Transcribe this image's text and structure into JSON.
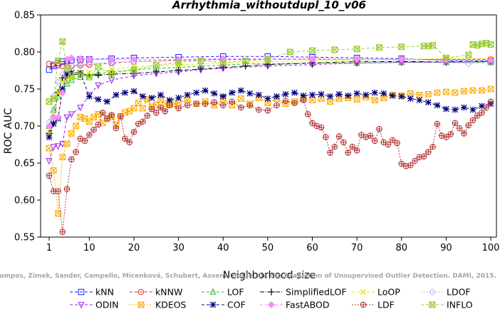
{
  "chart_data": {
    "type": "line",
    "title": "Arrhythmia_withoutdupl_10_v06",
    "xlabel": "Neighborhood size",
    "ylabel": "ROC AUC",
    "xlim": [
      0,
      101
    ],
    "ylim": [
      0.55,
      0.85
    ],
    "xticks": [
      1,
      10,
      20,
      30,
      40,
      50,
      60,
      70,
      80,
      90,
      100
    ],
    "yticks": [
      0.55,
      0.6,
      0.65,
      0.7,
      0.75,
      0.8,
      0.85
    ],
    "grid": false,
    "legend_position": "bottom",
    "credit": "Campos, Zimek, Sander, Campello, Micenková, Schubert, Assent, Houle: On the Evaluation of Unsupervised Outlier Detection. DAMI, 2015.",
    "series": [
      {
        "name": "kNN",
        "color": "#1a1aff",
        "marker": "square",
        "dash": "4,3",
        "x": [
          1,
          2,
          3,
          4,
          5,
          6,
          8,
          10,
          15,
          20,
          30,
          40,
          50,
          60,
          70,
          80,
          90,
          100
        ],
        "y": [
          0.776,
          0.781,
          0.785,
          0.787,
          0.788,
          0.789,
          0.79,
          0.79,
          0.791,
          0.792,
          0.793,
          0.794,
          0.794,
          0.793,
          0.792,
          0.791,
          0.789,
          0.788
        ]
      },
      {
        "name": "kNNW",
        "color": "#e02020",
        "marker": "circle",
        "dash": "4,3",
        "x": [
          1,
          2,
          3,
          4,
          5,
          6,
          8,
          10,
          15,
          20,
          30,
          40,
          50,
          60,
          70,
          80,
          90,
          100
        ],
        "y": [
          0.784,
          0.783,
          0.782,
          0.781,
          0.781,
          0.781,
          0.782,
          0.783,
          0.785,
          0.787,
          0.789,
          0.79,
          0.79,
          0.79,
          0.79,
          0.79,
          0.79,
          0.79
        ]
      },
      {
        "name": "LOF",
        "color": "#22bb22",
        "marker": "triangle-up",
        "dash": "4,3",
        "x": [
          1,
          2,
          3,
          4,
          5,
          6,
          8,
          10,
          12,
          15,
          20,
          25,
          30,
          35,
          40,
          45,
          50,
          60,
          70,
          80,
          90,
          100
        ],
        "y": [
          0.7,
          0.722,
          0.74,
          0.75,
          0.757,
          0.762,
          0.766,
          0.769,
          0.771,
          0.773,
          0.776,
          0.778,
          0.779,
          0.781,
          0.782,
          0.784,
          0.784,
          0.785,
          0.785,
          0.786,
          0.786,
          0.786
        ]
      },
      {
        "name": "SimplifiedLOF",
        "color": "#000000",
        "marker": "plus",
        "dash": "6,2,1,2",
        "x": [
          1,
          2,
          3,
          4,
          5,
          6,
          8,
          10,
          12,
          15,
          20,
          25,
          30,
          35,
          40,
          45,
          50,
          60,
          70,
          80,
          90,
          100
        ],
        "y": [
          0.69,
          0.705,
          0.745,
          0.765,
          0.768,
          0.77,
          0.77,
          0.769,
          0.769,
          0.77,
          0.771,
          0.773,
          0.775,
          0.777,
          0.779,
          0.781,
          0.783,
          0.785,
          0.787,
          0.787,
          0.787,
          0.787
        ]
      },
      {
        "name": "LoOP",
        "color": "#e8e800",
        "marker": "x",
        "dash": "4,3",
        "x": [
          1,
          2,
          3,
          4,
          5,
          6,
          8,
          10,
          15,
          20,
          30,
          40,
          50,
          60,
          70,
          80,
          90,
          100
        ],
        "y": [
          0.69,
          0.71,
          0.745,
          0.76,
          0.763,
          0.766,
          0.77,
          0.772,
          0.776,
          0.78,
          0.783,
          0.785,
          0.787,
          0.788,
          0.789,
          0.79,
          0.791,
          0.791
        ]
      },
      {
        "name": "LDOF",
        "color": "#b8b8f8",
        "marker": "diamond",
        "dash": "2,2",
        "x": [
          1,
          2,
          3,
          4,
          5,
          6,
          8,
          10,
          15,
          20,
          30,
          40,
          50,
          60,
          70,
          80,
          90,
          95,
          100
        ],
        "y": [
          0.705,
          0.74,
          0.76,
          0.77,
          0.78,
          0.782,
          0.784,
          0.785,
          0.786,
          0.787,
          0.788,
          0.789,
          0.79,
          0.79,
          0.79,
          0.789,
          0.786,
          0.784,
          0.786
        ]
      },
      {
        "name": "ODIN",
        "color": "#9922ee",
        "marker": "triangle-down",
        "dash": "4,3",
        "x": [
          1,
          2,
          3,
          4,
          5,
          6,
          8,
          10,
          12,
          15,
          20,
          25,
          30,
          35,
          40,
          50,
          60,
          70,
          80,
          90,
          100
        ],
        "y": [
          0.653,
          0.672,
          0.673,
          0.676,
          0.712,
          0.716,
          0.725,
          0.742,
          0.755,
          0.762,
          0.768,
          0.771,
          0.773,
          0.776,
          0.778,
          0.781,
          0.783,
          0.785,
          0.786,
          0.786,
          0.787
        ]
      },
      {
        "name": "KDEOS",
        "color": "#ffaa00",
        "marker": "square-x",
        "dash": "2,2",
        "x": [
          1,
          2,
          3,
          4,
          5,
          6,
          7,
          8,
          9,
          10,
          11,
          12,
          13,
          14,
          15,
          16,
          17,
          18,
          19,
          20,
          21,
          22,
          23,
          24,
          25,
          26,
          27,
          28,
          29,
          30,
          32,
          34,
          36,
          38,
          40,
          42,
          44,
          46,
          48,
          50,
          52,
          54,
          56,
          58,
          60,
          62,
          64,
          66,
          68,
          70,
          72,
          74,
          76,
          78,
          80,
          82,
          84,
          86,
          88,
          90,
          92,
          94,
          96,
          98,
          100
        ],
        "y": [
          0.67,
          0.64,
          0.582,
          0.658,
          0.676,
          0.69,
          0.7,
          0.712,
          0.71,
          0.706,
          0.712,
          0.716,
          0.704,
          0.71,
          0.713,
          0.702,
          0.713,
          0.718,
          0.72,
          0.724,
          0.731,
          0.724,
          0.736,
          0.726,
          0.729,
          0.735,
          0.73,
          0.729,
          0.73,
          0.731,
          0.735,
          0.73,
          0.733,
          0.728,
          0.736,
          0.728,
          0.737,
          0.73,
          0.738,
          0.731,
          0.737,
          0.73,
          0.733,
          0.737,
          0.735,
          0.737,
          0.733,
          0.737,
          0.738,
          0.736,
          0.739,
          0.735,
          0.738,
          0.742,
          0.741,
          0.744,
          0.742,
          0.743,
          0.745,
          0.746,
          0.745,
          0.747,
          0.748,
          0.748,
          0.75
        ]
      },
      {
        "name": "COF",
        "color": "#000080",
        "marker": "asterisk",
        "dash": "4,3",
        "x": [
          1,
          2,
          3,
          4,
          5,
          6,
          8,
          10,
          12,
          14,
          16,
          18,
          20,
          22,
          24,
          26,
          28,
          30,
          32,
          34,
          36,
          38,
          40,
          42,
          44,
          46,
          48,
          50,
          52,
          54,
          56,
          58,
          60,
          62,
          64,
          66,
          68,
          70,
          72,
          74,
          76,
          78,
          80,
          82,
          84,
          86,
          88,
          90,
          92,
          94,
          96,
          98,
          100
        ],
        "y": [
          0.685,
          0.703,
          0.71,
          0.75,
          0.77,
          0.772,
          0.772,
          0.74,
          0.736,
          0.733,
          0.742,
          0.745,
          0.747,
          0.74,
          0.738,
          0.742,
          0.735,
          0.738,
          0.742,
          0.745,
          0.748,
          0.744,
          0.74,
          0.745,
          0.748,
          0.744,
          0.742,
          0.737,
          0.74,
          0.743,
          0.745,
          0.741,
          0.742,
          0.743,
          0.74,
          0.743,
          0.741,
          0.744,
          0.742,
          0.745,
          0.744,
          0.741,
          0.74,
          0.737,
          0.735,
          0.732,
          0.728,
          0.723,
          0.722,
          0.725,
          0.722,
          0.727,
          0.73
        ]
      },
      {
        "name": "FastABOD",
        "color": "#ff88ff",
        "marker": "diamond-filled",
        "dash": "4,3",
        "x": [
          1,
          2,
          3,
          4,
          5,
          6,
          8,
          10,
          15,
          20,
          30,
          40,
          50,
          60,
          70,
          80,
          90,
          100
        ],
        "y": [
          0.7,
          0.712,
          0.712,
          0.745,
          0.79,
          0.792,
          0.791,
          0.79,
          0.79,
          0.79,
          0.79,
          0.791,
          0.791,
          0.791,
          0.79,
          0.79,
          0.789,
          0.789
        ]
      },
      {
        "name": "LDF",
        "color": "#b03030",
        "marker": "circle-plus",
        "dash": "2,2",
        "x": [
          1,
          2,
          3,
          4,
          5,
          6,
          7,
          8,
          9,
          10,
          11,
          12,
          13,
          14,
          15,
          16,
          17,
          18,
          19,
          20,
          21,
          22,
          23,
          24,
          25,
          26,
          27,
          28,
          30,
          32,
          34,
          36,
          38,
          40,
          42,
          44,
          46,
          48,
          50,
          52,
          54,
          56,
          58,
          59,
          60,
          61,
          62,
          63,
          64,
          65,
          66,
          67,
          68,
          69,
          70,
          71,
          72,
          73,
          74,
          75,
          76,
          77,
          78,
          79,
          80,
          81,
          82,
          83,
          84,
          85,
          86,
          87,
          88,
          89,
          90,
          91,
          92,
          93,
          94,
          95,
          96,
          97,
          98,
          99,
          100
        ],
        "y": [
          0.633,
          0.612,
          0.612,
          0.557,
          0.615,
          0.655,
          0.665,
          0.683,
          0.68,
          0.688,
          0.695,
          0.702,
          0.718,
          0.71,
          0.715,
          0.697,
          0.713,
          0.683,
          0.678,
          0.692,
          0.703,
          0.706,
          0.714,
          0.723,
          0.718,
          0.725,
          0.72,
          0.728,
          0.724,
          0.728,
          0.73,
          0.73,
          0.732,
          0.728,
          0.733,
          0.725,
          0.728,
          0.722,
          0.721,
          0.728,
          0.734,
          0.731,
          0.735,
          0.716,
          0.704,
          0.7,
          0.698,
          0.685,
          0.664,
          0.672,
          0.686,
          0.678,
          0.664,
          0.672,
          0.667,
          0.688,
          0.685,
          0.687,
          0.68,
          0.696,
          0.678,
          0.675,
          0.681,
          0.677,
          0.649,
          0.646,
          0.647,
          0.653,
          0.658,
          0.659,
          0.665,
          0.672,
          0.703,
          0.687,
          0.685,
          0.689,
          0.704,
          0.697,
          0.69,
          0.701,
          0.708,
          0.714,
          0.718,
          0.725,
          0.733
        ]
      },
      {
        "name": "INFLO",
        "color": "#99cc33",
        "marker": "square-cross",
        "dash": "4,3",
        "x": [
          1,
          2,
          3,
          4,
          5,
          6,
          8,
          10,
          12,
          15,
          20,
          25,
          30,
          35,
          40,
          45,
          50,
          55,
          60,
          65,
          70,
          75,
          80,
          85,
          86,
          87,
          90,
          95,
          96,
          97,
          98,
          99,
          100
        ],
        "y": [
          0.733,
          0.737,
          0.788,
          0.814,
          0.778,
          0.768,
          0.771,
          0.766,
          0.78,
          0.771,
          0.776,
          0.782,
          0.786,
          0.788,
          0.786,
          0.788,
          0.79,
          0.8,
          0.802,
          0.803,
          0.804,
          0.806,
          0.807,
          0.808,
          0.808,
          0.809,
          0.792,
          0.796,
          0.81,
          0.809,
          0.811,
          0.812,
          0.81
        ]
      }
    ]
  }
}
